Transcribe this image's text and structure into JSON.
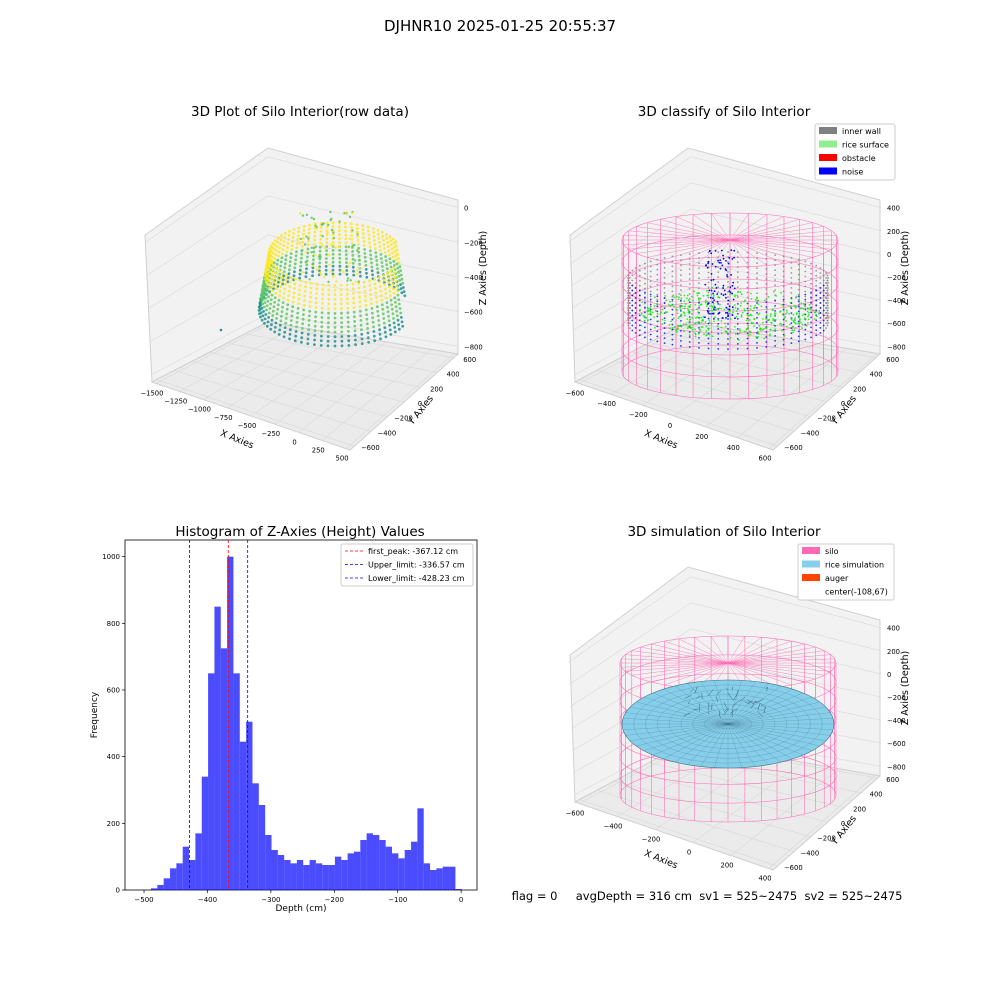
{
  "suptitle": "DJHNR10 2025-01-25 20:55:37",
  "panels": {
    "raw": {
      "title": "3D Plot of Silo Interior(row data)",
      "xlabel": "X Axies",
      "ylabel": "Y Axies",
      "zlabel": "Z Axies (Depth)",
      "x_ticks": [
        "−1500",
        "−1250",
        "−1000",
        "−750",
        "−500",
        "−250",
        "0",
        "250",
        "500"
      ],
      "y_ticks": [
        "−600",
        "−400",
        "−200",
        "0",
        "200",
        "400",
        "600"
      ],
      "z_ticks": [
        "0",
        "−200",
        "−400",
        "−600",
        "−800"
      ],
      "colormap": [
        "#440154",
        "#21908d",
        "#5ec962",
        "#fde725"
      ]
    },
    "classify": {
      "title": "3D classify of Silo Interior",
      "xlabel": "X Axies",
      "ylabel": "Y Axies",
      "zlabel": "Z Axies (Depth)",
      "x_ticks": [
        "−600",
        "−400",
        "−200",
        "0",
        "200",
        "400",
        "600"
      ],
      "y_ticks": [
        "−600",
        "−400",
        "−200",
        "0",
        "200",
        "400",
        "600"
      ],
      "z_ticks": [
        "400",
        "200",
        "0",
        "−200",
        "−400",
        "−600",
        "−800"
      ],
      "legend": [
        {
          "label": "inner wall",
          "color": "#808080"
        },
        {
          "label": "rice surface",
          "color": "#90ee90"
        },
        {
          "label": "obstacle",
          "color": "#ff0000"
        },
        {
          "label": "noise",
          "color": "#0000ff"
        }
      ]
    },
    "simulation": {
      "title": "3D simulation of Silo Interior",
      "xlabel": "X Axies",
      "ylabel": "Y Axies",
      "zlabel": "Z Axies (Depth)",
      "x_ticks": [
        "−600",
        "−400",
        "−200",
        "0",
        "200",
        "400"
      ],
      "y_ticks": [
        "−600",
        "−400",
        "−200",
        "0",
        "200",
        "400",
        "600"
      ],
      "z_ticks": [
        "400",
        "200",
        "0",
        "−200",
        "−400",
        "−600",
        "−800"
      ],
      "legend": [
        {
          "label": "silo",
          "color": "#ff69b4"
        },
        {
          "label": "rice simulation",
          "color": "#87ceeb"
        },
        {
          "label": "auger",
          "color": "#ff4500"
        },
        {
          "label": "center(-108,67)",
          "color": ""
        }
      ]
    }
  },
  "status_line": "flag = 0     avgDepth = 316 cm  sv1 = 525~2475  sv2 = 525~2475",
  "chart_data": {
    "type": "bar",
    "title": "Histogram of Z-Axies (Height) Values",
    "xlabel": "Depth (cm)",
    "ylabel": "Frequency",
    "xlim": [
      -530,
      25
    ],
    "ylim": [
      0,
      1050
    ],
    "x_ticks": [
      -500,
      -400,
      -300,
      -200,
      -100,
      0
    ],
    "x_tick_labels": [
      "−500",
      "−400",
      "−300",
      "−200",
      "−100",
      "0"
    ],
    "y_ticks": [
      0,
      200,
      400,
      600,
      800,
      1000
    ],
    "bar_color": "#0000ff",
    "bins": [
      {
        "x0": -489,
        "x1": -479,
        "value": 5
      },
      {
        "x0": -479,
        "x1": -469,
        "value": 15
      },
      {
        "x0": -469,
        "x1": -459,
        "value": 35
      },
      {
        "x0": -459,
        "x1": -449,
        "value": 65
      },
      {
        "x0": -449,
        "x1": -439,
        "value": 80
      },
      {
        "x0": -439,
        "x1": -429,
        "value": 130
      },
      {
        "x0": -429,
        "x1": -419,
        "value": 90
      },
      {
        "x0": -419,
        "x1": -409,
        "value": 170
      },
      {
        "x0": -409,
        "x1": -399,
        "value": 340
      },
      {
        "x0": -399,
        "x1": -389,
        "value": 650
      },
      {
        "x0": -389,
        "x1": -379,
        "value": 850
      },
      {
        "x0": -379,
        "x1": -369,
        "value": 725
      },
      {
        "x0": -369,
        "x1": -359,
        "value": 1000
      },
      {
        "x0": -359,
        "x1": -349,
        "value": 650
      },
      {
        "x0": -349,
        "x1": -339,
        "value": 445
      },
      {
        "x0": -339,
        "x1": -329,
        "value": 505
      },
      {
        "x0": -329,
        "x1": -319,
        "value": 320
      },
      {
        "x0": -319,
        "x1": -309,
        "value": 255
      },
      {
        "x0": -309,
        "x1": -299,
        "value": 165
      },
      {
        "x0": -299,
        "x1": -289,
        "value": 120
      },
      {
        "x0": -289,
        "x1": -279,
        "value": 105
      },
      {
        "x0": -279,
        "x1": -269,
        "value": 90
      },
      {
        "x0": -269,
        "x1": -259,
        "value": 80
      },
      {
        "x0": -259,
        "x1": -249,
        "value": 90
      },
      {
        "x0": -249,
        "x1": -239,
        "value": 75
      },
      {
        "x0": -239,
        "x1": -229,
        "value": 90
      },
      {
        "x0": -229,
        "x1": -219,
        "value": 80
      },
      {
        "x0": -219,
        "x1": -209,
        "value": 75
      },
      {
        "x0": -209,
        "x1": -199,
        "value": 75
      },
      {
        "x0": -199,
        "x1": -189,
        "value": 100
      },
      {
        "x0": -189,
        "x1": -179,
        "value": 90
      },
      {
        "x0": -179,
        "x1": -169,
        "value": 110
      },
      {
        "x0": -169,
        "x1": -159,
        "value": 115
      },
      {
        "x0": -159,
        "x1": -149,
        "value": 150
      },
      {
        "x0": -149,
        "x1": -139,
        "value": 170
      },
      {
        "x0": -139,
        "x1": -129,
        "value": 165
      },
      {
        "x0": -129,
        "x1": -119,
        "value": 150
      },
      {
        "x0": -119,
        "x1": -109,
        "value": 130
      },
      {
        "x0": -109,
        "x1": -99,
        "value": 110
      },
      {
        "x0": -99,
        "x1": -89,
        "value": 95
      },
      {
        "x0": -89,
        "x1": -79,
        "value": 120
      },
      {
        "x0": -79,
        "x1": -69,
        "value": 145
      },
      {
        "x0": -69,
        "x1": -59,
        "value": 245
      },
      {
        "x0": -59,
        "x1": -49,
        "value": 80
      },
      {
        "x0": -49,
        "x1": -39,
        "value": 60
      },
      {
        "x0": -39,
        "x1": -29,
        "value": 65
      },
      {
        "x0": -29,
        "x1": -19,
        "value": 70
      },
      {
        "x0": -19,
        "x1": -9,
        "value": 70
      },
      {
        "x0": -9,
        "x1": 1,
        "value": 3
      }
    ],
    "vlines": [
      {
        "x": -367.12,
        "color": "#ff0000",
        "label": "first_peak: -367.12 cm"
      },
      {
        "x": -336.57,
        "color": "#0000ff",
        "label": "Upper_limit: -336.57 cm"
      },
      {
        "x": -428.23,
        "color": "#0000ff",
        "label": "Lower_limit: -428.23 cm"
      }
    ],
    "legend_position": "upper right",
    "grid": false
  }
}
